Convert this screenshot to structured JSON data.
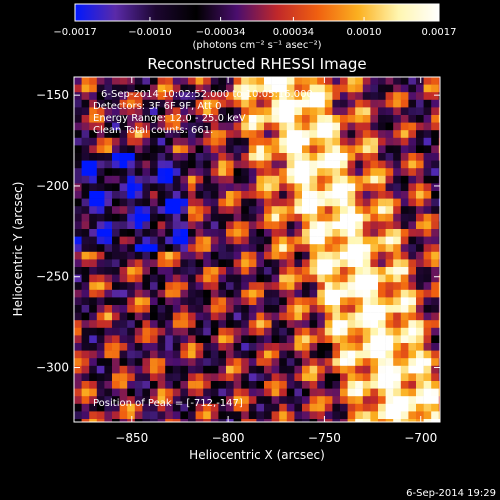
{
  "chart_data": {
    "type": "heatmap",
    "title": "Reconstructed RHESSI Image",
    "xlabel": "Heliocentric X (arcsec)",
    "ylabel": "Heliocentric Y (arcsec)",
    "xlim": [
      -880,
      -690
    ],
    "ylim": [
      -140,
      -330
    ],
    "x_ticks": [
      {
        "value": -850,
        "label": "−850"
      },
      {
        "value": -800,
        "label": "−800"
      },
      {
        "value": -750,
        "label": "−750"
      },
      {
        "value": -700,
        "label": "−700"
      }
    ],
    "y_ticks": [
      {
        "value": -150,
        "label": "−150"
      },
      {
        "value": -200,
        "label": "−200"
      },
      {
        "value": -250,
        "label": "−250"
      },
      {
        "value": -300,
        "label": "−300"
      }
    ],
    "colorbar": {
      "range": [
        -0.0017,
        0.0017
      ],
      "ticks": [
        {
          "value": -0.0017,
          "label": "−0.0017"
        },
        {
          "value": -0.001,
          "label": "−0.0010"
        },
        {
          "value": -0.00034,
          "label": "−0.00034"
        },
        {
          "value": 0.00034,
          "label": "0.00034"
        },
        {
          "value": 0.001,
          "label": "0.0010"
        },
        {
          "value": 0.0017,
          "label": "0.0017"
        }
      ],
      "units_label": "(photons cm⁻² s⁻¹ asec⁻²)",
      "colormap": [
        "#0018ff",
        "#5a2aa8",
        "#1c0630",
        "#000000",
        "#4a0e6e",
        "#c0282a",
        "#f06010",
        "#fbb020",
        "#fff6b0",
        "#ffffff"
      ]
    },
    "annotations": [
      "6-Sep-2014 10:02:52.000 to 10:05:16.000",
      "Detectors: 3F 6F 9F, Att 0",
      "Energy Range: 12.0 - 25.0 keV",
      "Clean     Total counts: 661."
    ],
    "peak_label": "Position of Peak = [-712,-147]",
    "timestamp": "6-Sep-2014 19:29"
  }
}
